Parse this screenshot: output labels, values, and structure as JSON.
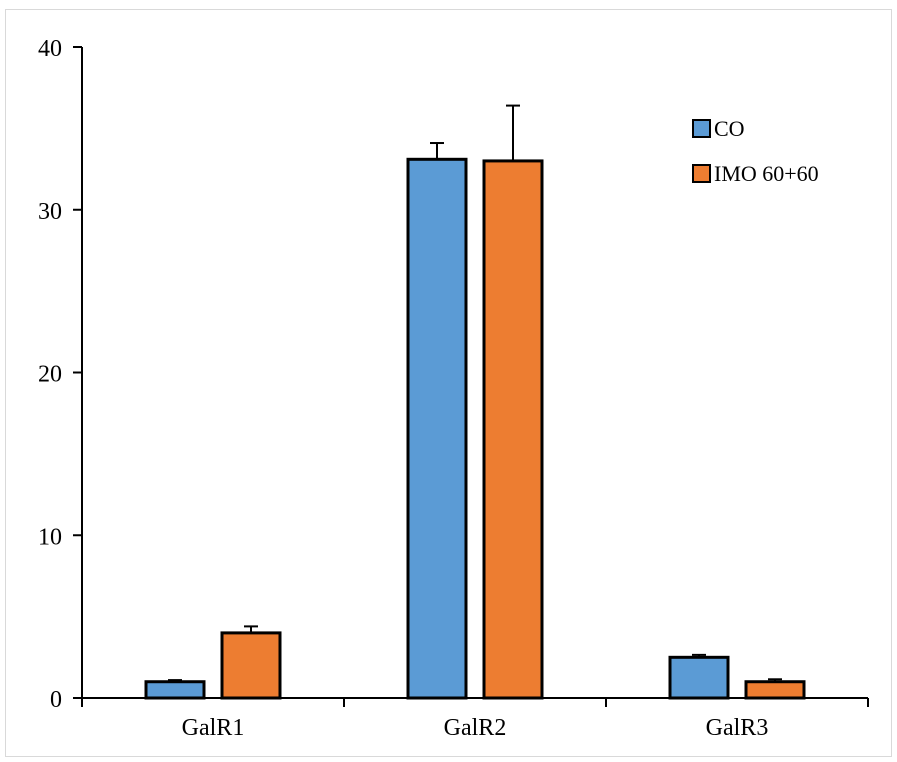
{
  "chart_data": {
    "type": "bar",
    "title": "",
    "xlabel": "",
    "ylabel": "",
    "categories": [
      "GalR1",
      "GalR2",
      "GalR3"
    ],
    "ylim": [
      0,
      40
    ],
    "yticks": [
      0,
      10,
      20,
      30,
      40
    ],
    "grid": false,
    "legend_position": "top-right",
    "series": [
      {
        "name": "CO",
        "color": "#5b9bd5",
        "values": [
          1.0,
          33.1,
          2.5
        ],
        "errors": [
          0.1,
          1.0,
          0.15
        ]
      },
      {
        "name": "IMO 60+60",
        "color": "#ed7d31",
        "values": [
          4.0,
          33.0,
          1.0
        ],
        "errors": [
          0.4,
          3.4,
          0.15
        ]
      }
    ]
  }
}
